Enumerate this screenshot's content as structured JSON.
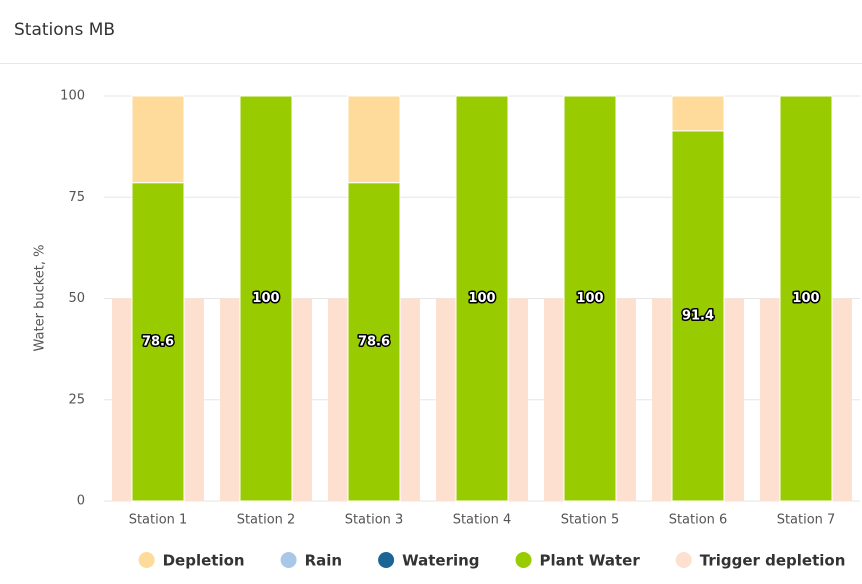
{
  "chart_data": {
    "type": "bar",
    "title": "Stations MB",
    "y_label": "Water bucket, %",
    "categories": [
      "Station 1",
      "Station 2",
      "Station 3",
      "Station 4",
      "Station 5",
      "Station 6",
      "Station 7"
    ],
    "series": [
      {
        "name": "Depletion",
        "color": "#fedb9a",
        "values": [
          21.4,
          0,
          21.4,
          0,
          0,
          8.6,
          0
        ]
      },
      {
        "name": "Rain",
        "color": "#a9c8e8",
        "values": [
          0,
          0,
          0,
          0,
          0,
          0,
          0
        ]
      },
      {
        "name": "Watering",
        "color": "#1a6496",
        "values": [
          0,
          0,
          0,
          0,
          0,
          0,
          0
        ]
      },
      {
        "name": "Plant Water",
        "color": "#99cc00",
        "values": [
          78.6,
          100,
          78.6,
          100,
          100,
          91.4,
          100
        ]
      },
      {
        "name": "Trigger depletion",
        "color": "#fde0d0",
        "values": [
          50,
          50,
          50,
          50,
          50,
          50,
          50
        ]
      }
    ],
    "ylim": [
      0,
      100
    ],
    "yticks": [
      0,
      25,
      50,
      75,
      100
    ],
    "grid": true,
    "legend": "bottom"
  }
}
